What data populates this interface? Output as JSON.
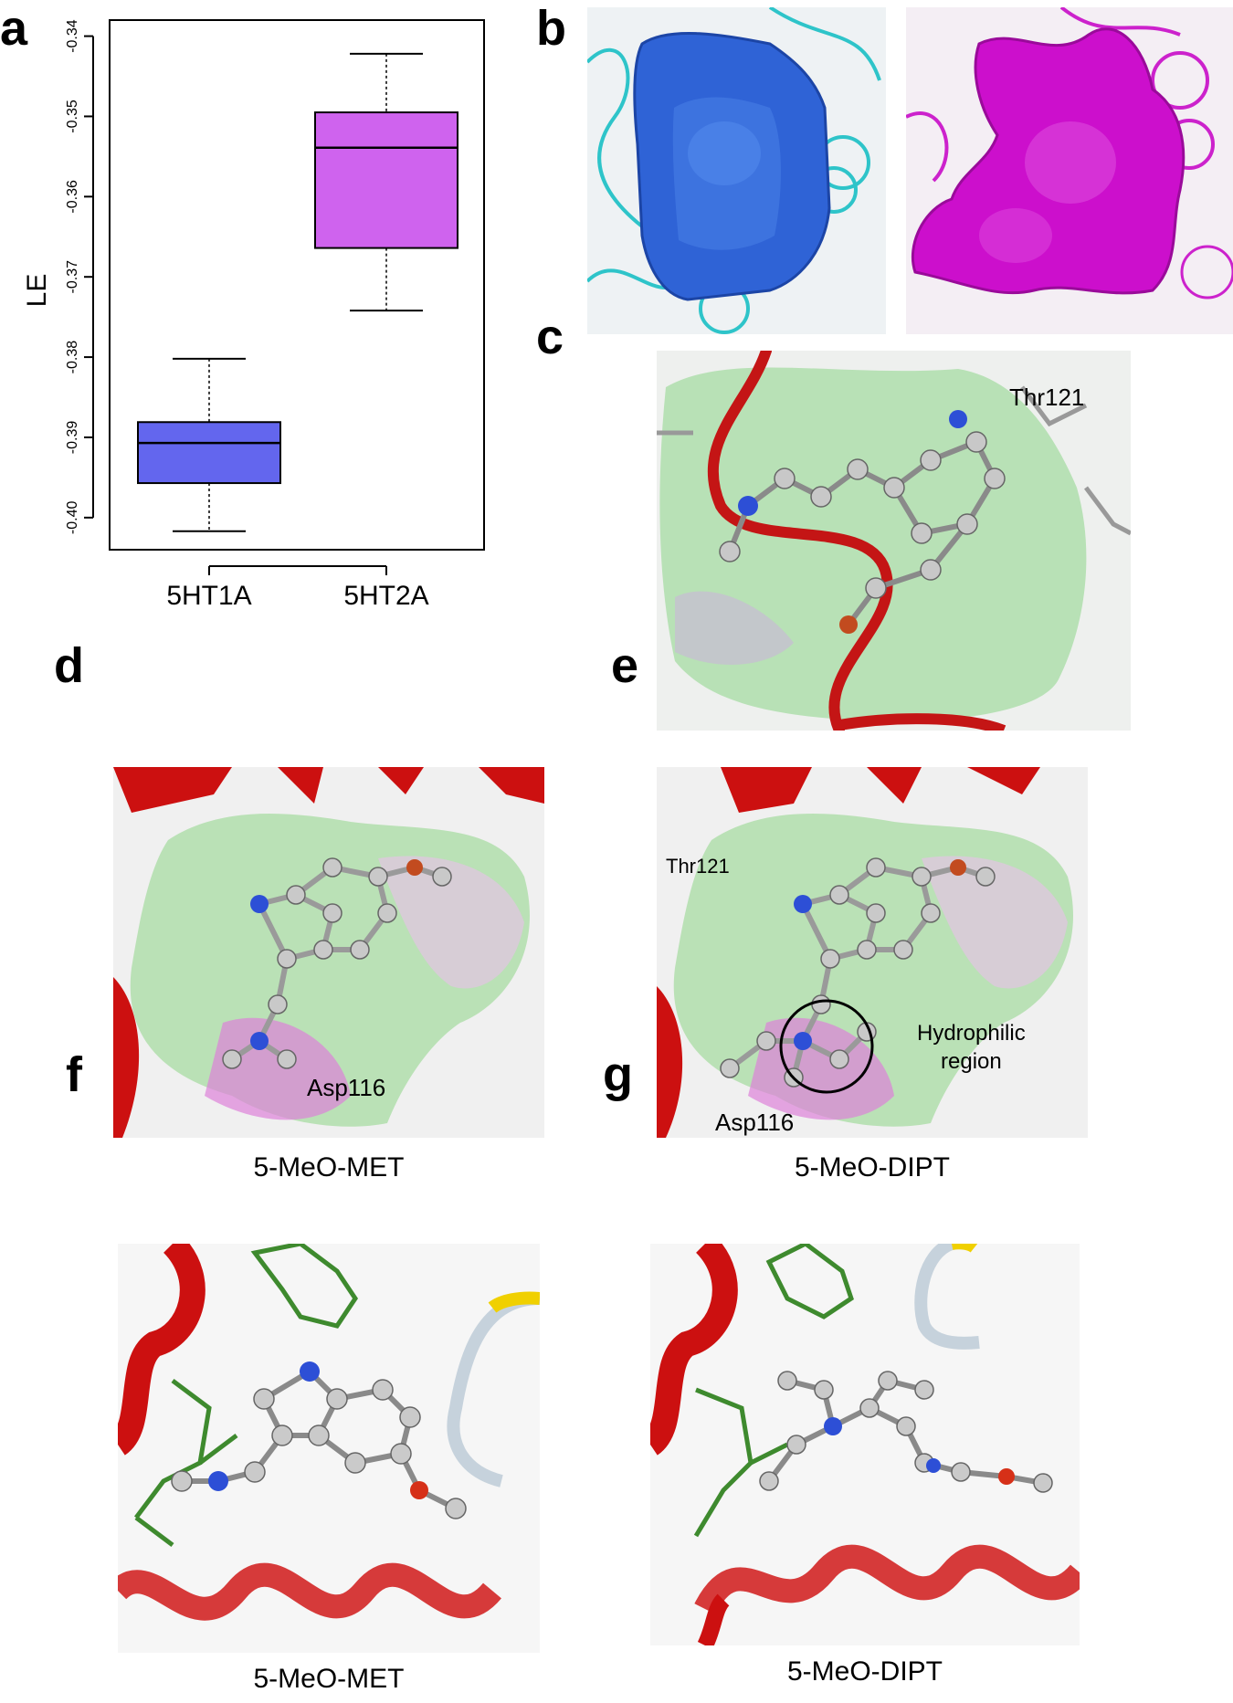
{
  "panels": {
    "a": "a",
    "b": "b",
    "c": "c",
    "d": "d",
    "e": "e",
    "f": "f",
    "g": "g"
  },
  "chart_data": {
    "type": "box",
    "ylabel": "LE",
    "ylim": [
      -0.404,
      -0.338
    ],
    "yticks": [
      -0.34,
      -0.35,
      -0.36,
      -0.37,
      -0.38,
      -0.39,
      -0.4
    ],
    "ytick_labels": [
      "-0.34",
      "-0.35",
      "-0.36",
      "-0.37",
      "-0.38",
      "-0.39",
      "-0.40"
    ],
    "categories": [
      "5HT1A",
      "5HT2A"
    ],
    "boxes": [
      {
        "category": "5HT1A",
        "color": "#6366ee",
        "whisker_low": -0.4017,
        "q1": -0.3957,
        "median": -0.3907,
        "q3": -0.3881,
        "whisker_high": -0.3802
      },
      {
        "category": "5HT2A",
        "color": "#cf63ee",
        "whisker_low": -0.3742,
        "q1": -0.3664,
        "median": -0.3539,
        "q3": -0.3495,
        "whisker_high": -0.3422
      }
    ]
  },
  "annotations": {
    "c_residue": "Thr121",
    "d_residue": "Asp116",
    "e_residue_top": "Thr121",
    "e_region_line1": "Hydrophilic",
    "e_region_line2": "region",
    "e_residue_bottom": "Asp116"
  },
  "captions": {
    "d": "5-MeO-MET",
    "e": "5-MeO-DIPT",
    "f": "5-MeO-MET",
    "g": "5-MeO-DIPT"
  },
  "colors": {
    "box_5ht1a": "#6366ee",
    "box_5ht2a": "#cf63ee",
    "pocket_blue": "#2f63d6",
    "pocket_magenta": "#cc0fcc",
    "helix_red": "#d11414",
    "surface_green": "#a6dca3"
  }
}
